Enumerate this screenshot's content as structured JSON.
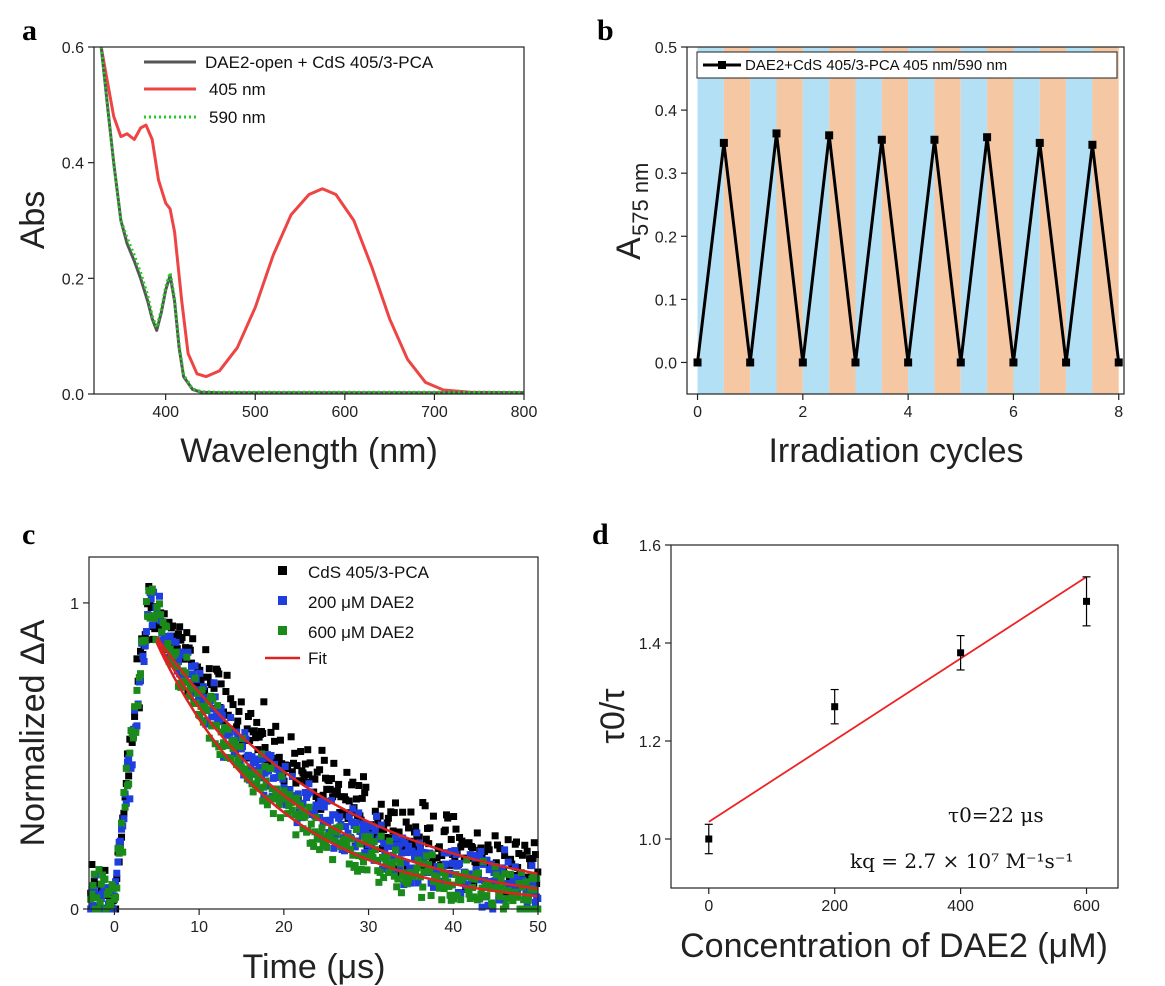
{
  "chart_data": [
    {
      "panel": "a",
      "type": "line",
      "xlabel": "Wavelength (nm)",
      "ylabel": "Abs",
      "xlim": [
        320,
        800
      ],
      "ylim": [
        0,
        0.6
      ],
      "xticks": [
        "400",
        "500",
        "600",
        "700",
        "800"
      ],
      "yticks": [
        "0.0",
        "0.2",
        "0.4",
        "0.6"
      ],
      "legend_position": "top-right",
      "series": [
        {
          "name": "DAE2-open + CdS 405/3-PCA",
          "color": "#555555",
          "style": "solid",
          "x": [
            328,
            335,
            342,
            350,
            357,
            365,
            372,
            380,
            385,
            390,
            395,
            400,
            405,
            410,
            415,
            420,
            430,
            440,
            460,
            500,
            600,
            700,
            800
          ],
          "y": [
            0.6,
            0.5,
            0.4,
            0.3,
            0.26,
            0.23,
            0.2,
            0.16,
            0.13,
            0.11,
            0.14,
            0.18,
            0.205,
            0.16,
            0.08,
            0.03,
            0.008,
            0.003,
            0.002,
            0.002,
            0.002,
            0.002,
            0.002
          ]
        },
        {
          "name": "405 nm",
          "color": "#ee4444",
          "style": "solid",
          "x": [
            328,
            335,
            342,
            350,
            357,
            365,
            372,
            378,
            385,
            392,
            400,
            405,
            410,
            418,
            425,
            435,
            445,
            460,
            480,
            500,
            520,
            540,
            560,
            575,
            590,
            610,
            630,
            650,
            670,
            690,
            710,
            740,
            800
          ],
          "y": [
            0.6,
            0.54,
            0.48,
            0.445,
            0.45,
            0.44,
            0.46,
            0.465,
            0.44,
            0.37,
            0.33,
            0.32,
            0.28,
            0.16,
            0.07,
            0.035,
            0.03,
            0.04,
            0.08,
            0.15,
            0.24,
            0.31,
            0.345,
            0.355,
            0.345,
            0.3,
            0.22,
            0.13,
            0.06,
            0.02,
            0.007,
            0.003,
            0.002
          ]
        },
        {
          "name": "590 nm",
          "color": "#22cc22",
          "style": "dotted",
          "x": [
            328,
            335,
            342,
            350,
            357,
            365,
            372,
            380,
            385,
            390,
            395,
            400,
            405,
            410,
            415,
            420,
            430,
            440,
            460,
            500,
            600,
            700,
            800
          ],
          "y": [
            0.6,
            0.5,
            0.4,
            0.3,
            0.27,
            0.24,
            0.21,
            0.17,
            0.135,
            0.115,
            0.145,
            0.185,
            0.21,
            0.165,
            0.085,
            0.033,
            0.009,
            0.004,
            0.003,
            0.003,
            0.003,
            0.003,
            0.003
          ]
        }
      ]
    },
    {
      "panel": "b",
      "type": "line",
      "xlabel": "Irradiation cycles",
      "ylabel": "A",
      "ylabel_sub": "575 nm",
      "xlim": [
        -0.2,
        8.1
      ],
      "ylim": [
        -0.05,
        0.5
      ],
      "xticks": [
        "0",
        "2",
        "4",
        "6",
        "8"
      ],
      "yticks": [
        "0.0",
        "0.1",
        "0.2",
        "0.3",
        "0.4",
        "0.5"
      ],
      "legend_position": "top",
      "band_colors": [
        "#b3e0f5",
        "#f5c7a3"
      ],
      "series": [
        {
          "name": "DAE2+CdS 405/3-PCA 405 nm/590 nm",
          "color": "#000000",
          "x": [
            0,
            0.5,
            1,
            1.5,
            2,
            2.5,
            3,
            3.5,
            4,
            4.5,
            5,
            5.5,
            6,
            6.5,
            7,
            7.5,
            8
          ],
          "y": [
            0,
            0.348,
            0,
            0.363,
            0,
            0.36,
            0,
            0.353,
            0,
            0.353,
            0,
            0.357,
            0,
            0.348,
            0,
            0.345,
            0
          ]
        }
      ]
    },
    {
      "panel": "c",
      "type": "scatter",
      "xlabel": "Time (μs)",
      "ylabel": "Normalized ΔA",
      "xlim": [
        -3,
        50
      ],
      "ylim": [
        0,
        1.15
      ],
      "xticks": [
        "0",
        "10",
        "20",
        "30",
        "40",
        "50"
      ],
      "yticks": [
        "0",
        "1"
      ],
      "legend_position": "top-right",
      "series": [
        {
          "name": "CdS 405/3-PCA",
          "color": "#000000",
          "tau": 22,
          "noise": 0.09
        },
        {
          "name": "200 μM DAE2",
          "color": "#1f3ee0",
          "tau": 17.4,
          "noise": 0.07
        },
        {
          "name": "600 μM DAE2",
          "color": "#1a8a1a",
          "tau": 14.8,
          "noise": 0.07
        },
        {
          "name": "Fit",
          "color": "#dd2222",
          "type": "line"
        }
      ]
    },
    {
      "panel": "d",
      "type": "scatter",
      "xlabel": "Concentration of DAE2 (μM)",
      "ylabel": "τ0/τ",
      "xlim": [
        -60,
        650
      ],
      "ylim": [
        0.9,
        1.6
      ],
      "xticks": [
        "0",
        "200",
        "400",
        "600"
      ],
      "yticks": [
        "1.0",
        "1.2",
        "1.4",
        "1.6"
      ],
      "points": {
        "x": [
          0,
          200,
          400,
          600
        ],
        "y": [
          1.0,
          1.27,
          1.38,
          1.485
        ],
        "err": [
          0.03,
          0.035,
          0.035,
          0.05
        ]
      },
      "fit": {
        "x": [
          0,
          600
        ],
        "y": [
          1.035,
          1.535
        ],
        "color": "#ee2222"
      },
      "annotations": [
        "τ0=22 μs",
        "kq = 2.7 × 10⁷ M⁻¹s⁻¹"
      ]
    }
  ],
  "panel_labels": [
    "a",
    "b",
    "c",
    "d"
  ]
}
